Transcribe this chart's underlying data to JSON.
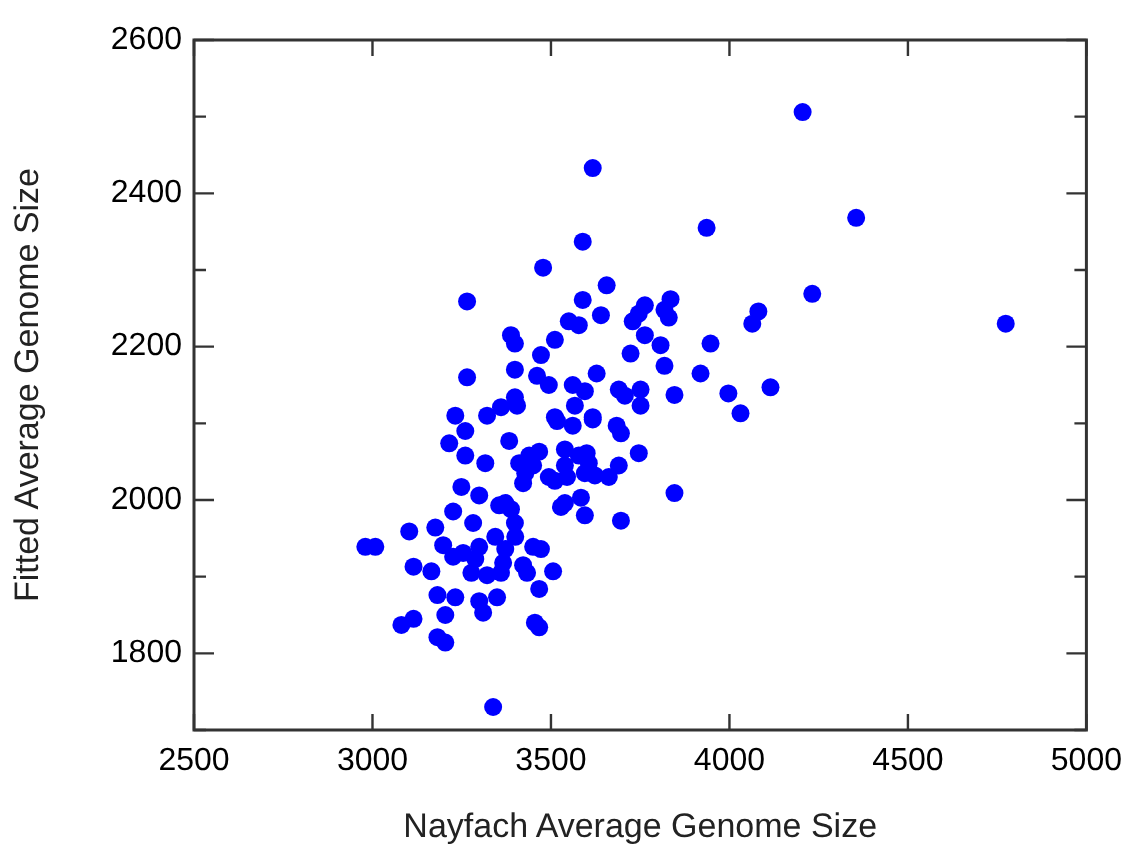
{
  "chart_data": {
    "type": "scatter",
    "xlabel": "Nayfach Average Genome Size",
    "ylabel": "Fitted Average Genome Size",
    "xlim": [
      2500,
      5000
    ],
    "xticks": [
      2500,
      3000,
      3500,
      4000,
      4500,
      5000
    ],
    "ylim": [
      1700,
      2600
    ],
    "yticks": [
      {
        "value": 1700,
        "label": null
      },
      1800,
      {
        "value": 1900,
        "label": null
      },
      2000,
      {
        "value": 2100,
        "label": null
      },
      2200,
      {
        "value": 2300,
        "label": null
      },
      2400,
      {
        "value": 2500,
        "label": null
      },
      2600
    ],
    "grid": false,
    "legend": false,
    "marker": "circle",
    "series": [
      {
        "color": "#0000ff",
        "x": [
          4205,
          4355,
          3936,
          4232,
          3835,
          3818,
          3830,
          4081,
          4064,
          4774,
          3807,
          3947,
          3818,
          3919,
          3846,
          3997,
          4115,
          4031,
          3846,
          3617,
          3589,
          3478,
          3265,
          3656,
          3589,
          3640,
          3763,
          3746,
          3729,
          3550,
          3578,
          3388,
          3399,
          3511,
          3472,
          3763,
          3723,
          3265,
          3399,
          3461,
          3494,
          3628,
          3561,
          3595,
          3690,
          3707,
          3751,
          3751,
          3399,
          3405,
          3360,
          3567,
          3232,
          3321,
          3511,
          3617,
          3260,
          3215,
          3260,
          3383,
          3316,
          3517,
          3561,
          3617,
          3684,
          3696,
          3746,
          3411,
          3439,
          3467,
          3450,
          3428,
          3539,
          3539,
          3578,
          3600,
          3606,
          3595,
          3494,
          3511,
          3545,
          3623,
          3662,
          3690,
          3422,
          3249,
          3299,
          3226,
          3282,
          3355,
          3372,
          3388,
          3399,
          3528,
          3539,
          3584,
          3595,
          3696,
          3103,
          3176,
          2980,
          3008,
          3198,
          3226,
          3254,
          3288,
          3299,
          3344,
          3366,
          3400,
          3372,
          3450,
          3472,
          3115,
          3165,
          3277,
          3321,
          3360,
          3422,
          3433,
          3506,
          3467,
          3182,
          3232,
          3299,
          3310,
          3349,
          3204,
          3081,
          3115,
          3455,
          3467,
          3182,
          3204,
          3338
        ],
        "values": [
          2506,
          2368,
          2355,
          2269,
          2262,
          2248,
          2238,
          2246,
          2230,
          2230,
          2202,
          2204,
          2175,
          2165,
          2137,
          2139,
          2147,
          2113,
          2009,
          2433,
          2337,
          2303,
          2259,
          2280,
          2261,
          2241,
          2254,
          2243,
          2233,
          2233,
          2228,
          2215,
          2204,
          2209,
          2189,
          2215,
          2191,
          2160,
          2170,
          2162,
          2150,
          2165,
          2150,
          2142,
          2144,
          2136,
          2144,
          2123,
          2134,
          2123,
          2121,
          2123,
          2110,
          2110,
          2108,
          2108,
          2090,
          2074,
          2058,
          2077,
          2048,
          2103,
          2097,
          2105,
          2097,
          2087,
          2061,
          2048,
          2058,
          2063,
          2045,
          2035,
          2066,
          2045,
          2058,
          2061,
          2048,
          2035,
          2030,
          2025,
          2030,
          2032,
          2030,
          2045,
          2022,
          2017,
          2006,
          1985,
          1970,
          1993,
          1996,
          1988,
          1970,
          1991,
          1996,
          2003,
          1980,
          1973,
          1959,
          1964,
          1939,
          1939,
          1941,
          1926,
          1931,
          1923,
          1939,
          1952,
          1918,
          1952,
          1936,
          1939,
          1936,
          1913,
          1907,
          1905,
          1902,
          1905,
          1915,
          1905,
          1907,
          1884,
          1876,
          1873,
          1868,
          1853,
          1873,
          1850,
          1837,
          1845,
          1840,
          1834,
          1821,
          1814,
          1730
        ]
      }
    ]
  }
}
